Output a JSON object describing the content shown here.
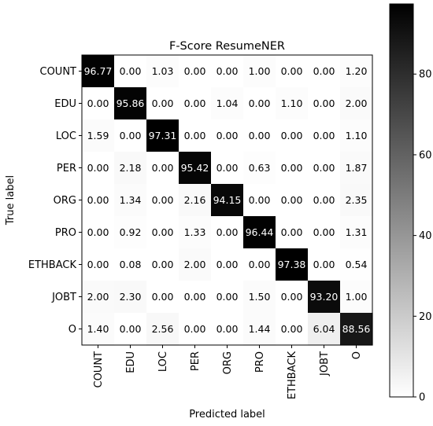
{
  "chart_data": {
    "type": "heatmap",
    "title": "F-Score ResumeNER",
    "xlabel": "Predicted label",
    "ylabel": "True label",
    "x_categories": [
      "COUNT",
      "EDU",
      "LOC",
      "PER",
      "ORG",
      "PRO",
      "ETHBACK",
      "JOBT",
      "O"
    ],
    "y_categories": [
      "COUNT",
      "EDU",
      "LOC",
      "PER",
      "ORG",
      "PRO",
      "ETHBACK",
      "JOBT",
      "O"
    ],
    "values": [
      [
        "96.77",
        "0.00",
        "1.03",
        "0.00",
        "0.00",
        "1.00",
        "0.00",
        "0.00",
        "1.20"
      ],
      [
        "0.00",
        "95.86",
        "0.00",
        "0.00",
        "1.04",
        "0.00",
        "1.10",
        "0.00",
        "2.00"
      ],
      [
        "1.59",
        "0.00",
        "97.31",
        "0.00",
        "0.00",
        "0.00",
        "0.00",
        "0.00",
        "1.10"
      ],
      [
        "0.00",
        "2.18",
        "0.00",
        "95.42",
        "0.00",
        "0.63",
        "0.00",
        "0.00",
        "1.87"
      ],
      [
        "0.00",
        "1.34",
        "0.00",
        "2.16",
        "94.15",
        "0.00",
        "0.00",
        "0.00",
        "2.35"
      ],
      [
        "0.00",
        "0.92",
        "0.00",
        "1.33",
        "0.00",
        "96.44",
        "0.00",
        "0.00",
        "1.31"
      ],
      [
        "0.00",
        "0.08",
        "0.00",
        "2.00",
        "0.00",
        "0.00",
        "97.38",
        "0.00",
        "0.54"
      ],
      [
        "2.00",
        "2.30",
        "0.00",
        "0.00",
        "0.00",
        "1.50",
        "0.00",
        "93.20",
        "1.00"
      ],
      [
        "1.40",
        "0.00",
        "2.56",
        "0.00",
        "0.00",
        "1.44",
        "0.00",
        "6.04",
        "88.56"
      ]
    ],
    "colormap": "greys",
    "color_low": "#ffffff",
    "color_high": "#000000",
    "vmin": 0,
    "vmax": 97.38,
    "colorbar_ticks": [
      "0",
      "20",
      "40",
      "60",
      "80"
    ],
    "grid": false
  }
}
